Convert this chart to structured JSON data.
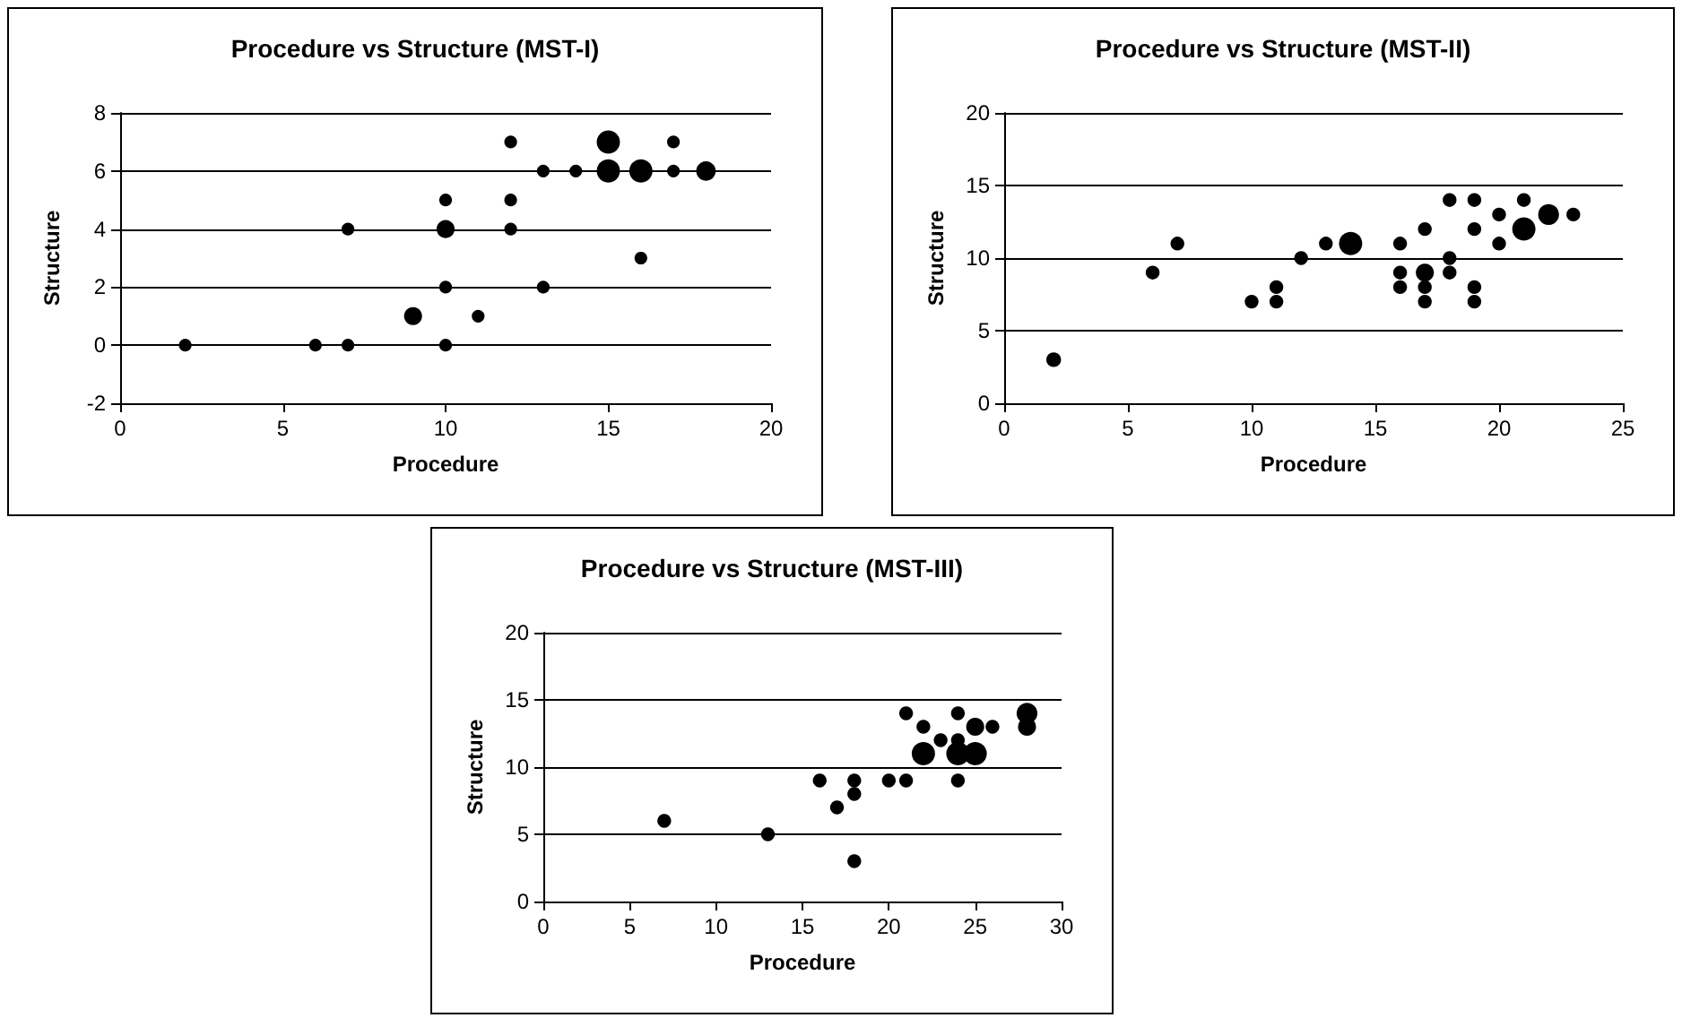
{
  "chart_data": [
    {
      "type": "bubble",
      "title": "Procedure vs Structure (MST-I)",
      "xlabel": "Procedure",
      "ylabel": "Structure",
      "xlim": [
        0,
        20
      ],
      "xticks": [
        0,
        5,
        10,
        15,
        20
      ],
      "ylim": [
        -2,
        8
      ],
      "yticks": [
        -2,
        0,
        2,
        4,
        6,
        8
      ],
      "grid": "y",
      "series": [
        {
          "color": "#000000",
          "x": [
            2,
            6,
            7,
            7,
            9,
            10,
            10,
            10,
            10,
            11,
            12,
            12,
            12,
            13,
            13,
            14,
            15,
            15,
            16,
            16,
            17,
            17,
            18
          ],
          "values": [
            0,
            0,
            0,
            4,
            1,
            0,
            2,
            4,
            5,
            1,
            4,
            5,
            7,
            2,
            6,
            6,
            7,
            6,
            6,
            3,
            7,
            6,
            6
          ],
          "sizes": [
            0.3,
            0.3,
            0.3,
            0.3,
            0.6,
            0.3,
            0.3,
            0.6,
            0.3,
            0.3,
            0.3,
            0.3,
            0.3,
            0.3,
            0.3,
            0.3,
            1,
            1,
            1,
            0.3,
            0.3,
            0.3,
            0.7
          ]
        }
      ]
    },
    {
      "type": "bubble",
      "title": "Procedure vs Structure (MST-II)",
      "xlabel": "Procedure",
      "ylabel": "Structure",
      "xlim": [
        0,
        25
      ],
      "xticks": [
        0,
        5,
        10,
        15,
        20,
        25
      ],
      "ylim": [
        0,
        20
      ],
      "yticks": [
        0,
        5,
        10,
        15,
        20
      ],
      "grid": "y",
      "series": [
        {
          "color": "#000000",
          "x": [
            2,
            6,
            7,
            10,
            11,
            11,
            12,
            13,
            14,
            16,
            16,
            16,
            17,
            17,
            17,
            17,
            18,
            18,
            18,
            19,
            19,
            19,
            19,
            20,
            20,
            21,
            21,
            22,
            23
          ],
          "values": [
            3,
            9,
            11,
            7,
            7,
            8,
            10,
            11,
            11,
            11,
            9,
            8,
            12,
            9,
            8,
            7,
            14,
            10,
            9,
            14,
            12,
            8,
            7,
            13,
            11,
            14,
            12,
            13,
            13
          ],
          "sizes": [
            0.4,
            0.35,
            0.35,
            0.35,
            0.35,
            0.35,
            0.35,
            0.35,
            1,
            0.35,
            0.35,
            0.35,
            0.35,
            0.6,
            0.35,
            0.35,
            0.35,
            0.35,
            0.35,
            0.35,
            0.35,
            0.35,
            0.35,
            0.35,
            0.35,
            0.35,
            1,
            0.8,
            0.35
          ]
        }
      ]
    },
    {
      "type": "bubble",
      "title": "Procedure vs Structure (MST-III)",
      "xlabel": "Procedure",
      "ylabel": "Structure",
      "xlim": [
        0,
        30
      ],
      "xticks": [
        0,
        5,
        10,
        15,
        20,
        25,
        30
      ],
      "ylim": [
        0,
        20
      ],
      "yticks": [
        0,
        5,
        10,
        15,
        20
      ],
      "grid": "y",
      "series": [
        {
          "color": "#000000",
          "x": [
            7,
            13,
            16,
            17,
            18,
            18,
            18,
            20,
            21,
            21,
            22,
            22,
            23,
            24,
            24,
            24,
            24,
            25,
            25,
            26,
            28,
            28
          ],
          "values": [
            6,
            5,
            9,
            7,
            9,
            8,
            3,
            9,
            14,
            9,
            13,
            11,
            12,
            14,
            12,
            9,
            11,
            13,
            11,
            13,
            14,
            13
          ],
          "sizes": [
            0.35,
            0.35,
            0.35,
            0.35,
            0.35,
            0.35,
            0.35,
            0.35,
            0.35,
            0.35,
            0.35,
            1,
            0.35,
            0.35,
            0.35,
            0.35,
            1,
            0.6,
            1,
            0.35,
            0.8,
            0.6
          ]
        }
      ]
    }
  ]
}
